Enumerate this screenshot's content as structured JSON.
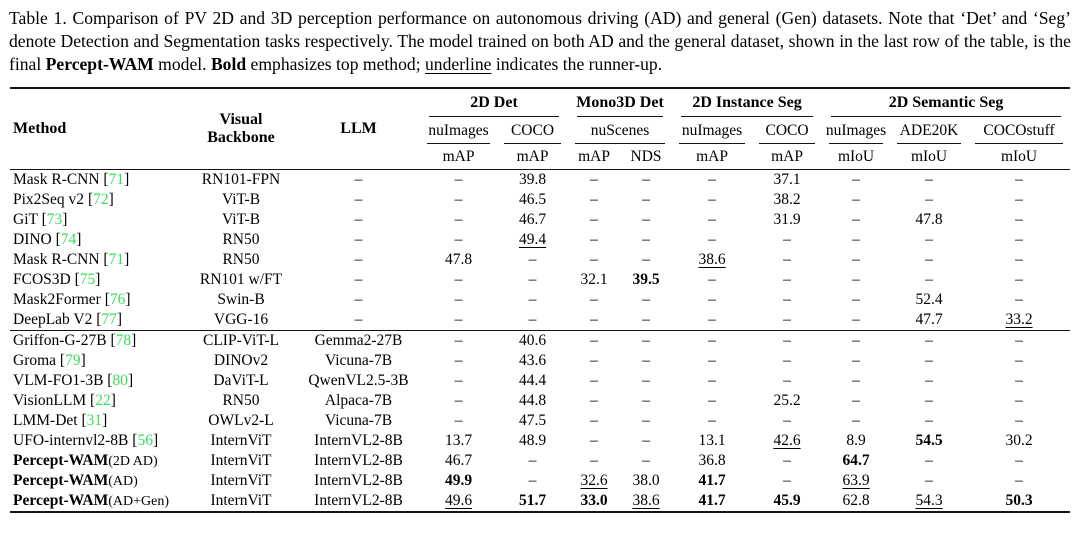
{
  "colors": {
    "citation_green": "#3BDE5C",
    "rule": "#151515"
  },
  "caption": {
    "segments": [
      {
        "text": "Table 1. Comparison of PV 2D and 3D perception performance on autonomous driving (AD) and general (Gen) datasets. Note that ‘Det’ and ‘Seg’ denote Detection and Segmentation tasks respectively. The model trained on both AD and the general dataset, shown in the last row of the table, is the final ",
        "style": "normal"
      },
      {
        "text": "Percept-WAM",
        "style": "bold"
      },
      {
        "text": " model. ",
        "style": "normal"
      },
      {
        "text": "Bold",
        "style": "bold"
      },
      {
        "text": " emphasizes top method; ",
        "style": "normal"
      },
      {
        "text": "underline",
        "style": "underline"
      },
      {
        "text": " indicates the runner-up.",
        "style": "normal"
      }
    ]
  },
  "table": {
    "header": {
      "method": "Method",
      "backbone_line1": "Visual",
      "backbone_line2": "Backbone",
      "llm": "LLM",
      "groups": [
        {
          "label": "2D Det",
          "datasets": [
            {
              "name": "nuImages",
              "metrics": [
                "mAP"
              ]
            },
            {
              "name": "COCO",
              "metrics": [
                "mAP"
              ]
            }
          ]
        },
        {
          "label": "Mono3D Det",
          "datasets": [
            {
              "name": "nuScenes",
              "metrics": [
                "mAP",
                "NDS"
              ]
            }
          ]
        },
        {
          "label": "2D Instance Seg",
          "datasets": [
            {
              "name": "nuImages",
              "metrics": [
                "mAP"
              ]
            },
            {
              "name": "COCO",
              "metrics": [
                "mAP"
              ]
            }
          ]
        },
        {
          "label": "2D Semantic Seg",
          "datasets": [
            {
              "name": "nuImages",
              "metrics": [
                "mIoU"
              ]
            },
            {
              "name": "ADE20K",
              "metrics": [
                "mIoU"
              ]
            },
            {
              "name": "COCOstuff",
              "metrics": [
                "mIoU"
              ]
            }
          ]
        }
      ]
    },
    "blocks": [
      [
        {
          "method": "Mask R-CNN",
          "cite": "71",
          "suffix": "",
          "bold_method": false,
          "backbone": "RN101-FPN",
          "llm": "–",
          "values": [
            "–",
            "39.8",
            "–",
            "–",
            "–",
            "37.1",
            "–",
            "–",
            "–"
          ]
        },
        {
          "method": "Pix2Seq v2",
          "cite": "72",
          "suffix": "",
          "bold_method": false,
          "backbone": "ViT-B",
          "llm": "–",
          "values": [
            "–",
            "46.5",
            "–",
            "–",
            "–",
            "38.2",
            "–",
            "–",
            "–"
          ]
        },
        {
          "method": "GiT",
          "cite": "73",
          "suffix": "",
          "bold_method": false,
          "backbone": "ViT-B",
          "llm": "–",
          "values": [
            "–",
            "46.7",
            "–",
            "–",
            "–",
            "31.9",
            "–",
            "47.8",
            "–"
          ]
        },
        {
          "method": "DINO",
          "cite": "74",
          "suffix": "",
          "bold_method": false,
          "backbone": "RN50",
          "llm": "–",
          "values": [
            "–",
            {
              "v": "49.4",
              "s": "u"
            },
            "–",
            "–",
            "–",
            "–",
            "–",
            "–",
            "–"
          ]
        },
        {
          "method": "Mask R-CNN",
          "cite": "71",
          "suffix": "",
          "bold_method": false,
          "backbone": "RN50",
          "llm": "–",
          "values": [
            "47.8",
            "–",
            "–",
            "–",
            {
              "v": "38.6",
              "s": "u"
            },
            "–",
            "–",
            "–",
            "–"
          ]
        },
        {
          "method": "FCOS3D",
          "cite": "75",
          "suffix": "",
          "bold_method": false,
          "backbone": "RN101 w/FT",
          "llm": "–",
          "values": [
            "–",
            "–",
            "32.1",
            {
              "v": "39.5",
              "s": "b"
            },
            "–",
            "–",
            "–",
            "–",
            "–"
          ]
        },
        {
          "method": "Mask2Former",
          "cite": "76",
          "suffix": "",
          "bold_method": false,
          "backbone": "Swin-B",
          "llm": "–",
          "values": [
            "–",
            "–",
            "–",
            "–",
            "–",
            "–",
            "–",
            "52.4",
            "–"
          ]
        },
        {
          "method": "DeepLab V2",
          "cite": "77",
          "suffix": "",
          "bold_method": false,
          "backbone": "VGG-16",
          "llm": "–",
          "values": [
            "–",
            "–",
            "–",
            "–",
            "–",
            "–",
            "–",
            "47.7",
            {
              "v": "33.2",
              "s": "u"
            }
          ]
        }
      ],
      [
        {
          "method": "Griffon-G-27B",
          "cite": "78",
          "suffix": "",
          "bold_method": false,
          "backbone": "CLIP-ViT-L",
          "llm": "Gemma2-27B",
          "values": [
            "–",
            "40.6",
            "–",
            "–",
            "–",
            "–",
            "–",
            "–",
            "–"
          ]
        },
        {
          "method": "Groma",
          "cite": "79",
          "suffix": "",
          "bold_method": false,
          "backbone": "DINOv2",
          "llm": "Vicuna-7B",
          "values": [
            "–",
            "43.6",
            "–",
            "–",
            "–",
            "–",
            "–",
            "–",
            "–"
          ]
        },
        {
          "method": "VLM-FO1-3B",
          "cite": "80",
          "suffix": "",
          "bold_method": false,
          "backbone": "DaViT-L",
          "llm": "QwenVL2.5-3B",
          "values": [
            "–",
            "44.4",
            "–",
            "–",
            "–",
            "–",
            "–",
            "–",
            "–"
          ]
        },
        {
          "method": "VisionLLM",
          "cite": "22",
          "suffix": "",
          "bold_method": false,
          "backbone": "RN50",
          "llm": "Alpaca-7B",
          "values": [
            "–",
            "44.8",
            "–",
            "–",
            "–",
            "25.2",
            "–",
            "–",
            "–"
          ]
        },
        {
          "method": "LMM-Det",
          "cite": "31",
          "suffix": "",
          "bold_method": false,
          "backbone": "OWLv2-L",
          "llm": "Vicuna-7B",
          "values": [
            "–",
            "47.5",
            "–",
            "–",
            "–",
            "–",
            "–",
            "–",
            "–"
          ]
        },
        {
          "method": "UFO-internvl2-8B",
          "cite": "56",
          "suffix": "",
          "bold_method": false,
          "backbone": "InternViT",
          "llm": "InternVL2-8B",
          "values": [
            "13.7",
            "48.9",
            "–",
            "–",
            "13.1",
            {
              "v": "42.6",
              "s": "u"
            },
            "8.9",
            {
              "v": "54.5",
              "s": "b"
            },
            "30.2"
          ]
        },
        {
          "method": "Percept-WAM",
          "cite": "",
          "suffix": "(2D AD)",
          "bold_method": true,
          "backbone": "InternViT",
          "llm": "InternVL2-8B",
          "values": [
            "46.7",
            "–",
            "–",
            "–",
            "36.8",
            "–",
            {
              "v": "64.7",
              "s": "b"
            },
            "–",
            "–"
          ]
        },
        {
          "method": "Percept-WAM",
          "cite": "",
          "suffix": "(AD)",
          "bold_method": true,
          "backbone": "InternViT",
          "llm": "InternVL2-8B",
          "values": [
            {
              "v": "49.9",
              "s": "b"
            },
            "–",
            {
              "v": "32.6",
              "s": "u"
            },
            "38.0",
            {
              "v": "41.7",
              "s": "b"
            },
            "–",
            {
              "v": "63.9",
              "s": "u"
            },
            "–",
            "–"
          ]
        },
        {
          "method": "Percept-WAM",
          "cite": "",
          "suffix": "(AD+Gen)",
          "bold_method": true,
          "backbone": "InternViT",
          "llm": "InternVL2-8B",
          "values": [
            {
              "v": "49.6",
              "s": "u"
            },
            {
              "v": "51.7",
              "s": "b"
            },
            {
              "v": "33.0",
              "s": "b"
            },
            {
              "v": "38.6",
              "s": "u"
            },
            {
              "v": "41.7",
              "s": "b"
            },
            {
              "v": "45.9",
              "s": "b"
            },
            "62.8",
            {
              "v": "54.3",
              "s": "u"
            },
            {
              "v": "50.3",
              "s": "b"
            }
          ]
        }
      ]
    ]
  }
}
